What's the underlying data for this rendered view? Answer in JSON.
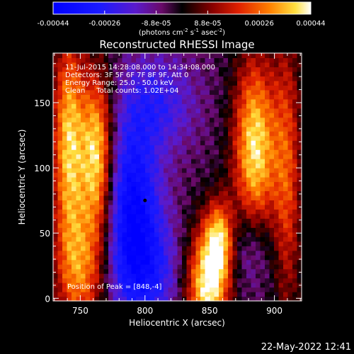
{
  "chart_data": {
    "type": "heatmap",
    "title": "Reconstructed RHESSI Image",
    "xlabel": "Heliocentric X (arcsec)",
    "ylabel": "Heliocentric Y (arcsec)",
    "xlim": [
      729,
      921
    ],
    "ylim": [
      -2,
      188
    ],
    "xticks": [
      750,
      800,
      850,
      900
    ],
    "yticks": [
      0,
      50,
      100,
      150
    ],
    "colorbar": {
      "ticks": [
        "-0.00044",
        "-0.00026",
        "-8.8e-05",
        "8.8e-05",
        "0.00026",
        "0.00044"
      ],
      "units_text": "(photons cm",
      "units_exp1": "-2",
      "units_mid": " s",
      "units_exp2": "-1",
      "units_tail": " asec",
      "units_exp3": "-2",
      "units_close": ")",
      "range": [
        -0.00044,
        0.00044
      ]
    },
    "annotations": {
      "time": "11-Jul-2015 14:28:08.000 to 14:34:08.000",
      "detectors": "Detectors: 3F 5F 6F 7F 8F 9F, Att 0",
      "energy": "Energy Range: 25.0 - 50.0 keV",
      "clean": "Clean     Total counts: 1.02E+04",
      "peak": "Position of Peak = [848,-4]"
    },
    "min_marker": [
      800,
      75
    ],
    "blobs": [
      {
        "x": 741,
        "y": 120,
        "sx": 9,
        "sy": 60,
        "a": 0.00042
      },
      {
        "x": 763,
        "y": 110,
        "sx": 9,
        "sy": 45,
        "a": 0.00046
      },
      {
        "x": 751,
        "y": 20,
        "sx": 14,
        "sy": 35,
        "a": 0.0003
      },
      {
        "x": 885,
        "y": 115,
        "sx": 12,
        "sy": 50,
        "a": 0.00046
      },
      {
        "x": 910,
        "y": 95,
        "sx": 8,
        "sy": 80,
        "a": 0.00026
      },
      {
        "x": 848,
        "y": 10,
        "sx": 12,
        "sy": 32,
        "a": 0.00048
      },
      {
        "x": 858,
        "y": 45,
        "sx": 8,
        "sy": 22,
        "a": 0.00036
      },
      {
        "x": 810,
        "y": 150,
        "sx": 20,
        "sy": 25,
        "a": -0.00018
      },
      {
        "x": 790,
        "y": 75,
        "sx": 15,
        "sy": 45,
        "a": -0.00034
      },
      {
        "x": 800,
        "y": 20,
        "sx": 20,
        "sy": 30,
        "a": -0.00022
      },
      {
        "x": 880,
        "y": 40,
        "sx": 14,
        "sy": 25,
        "a": -0.00016
      }
    ],
    "background": -5e-05,
    "grid": false,
    "legend": "none"
  },
  "footer": {
    "datetime": "22-May-2022 12:41"
  }
}
